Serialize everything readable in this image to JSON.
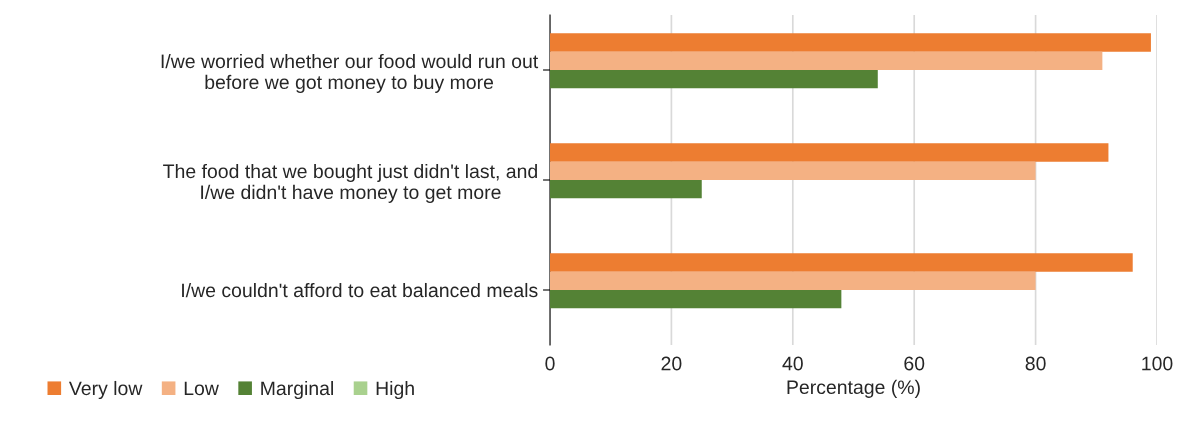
{
  "chart_data": {
    "type": "bar",
    "orientation": "horizontal",
    "xlabel": "Percentage (%)",
    "categories": [
      "I/we worried whether our food would run out\nbefore we got money to buy more",
      "The food that we bought just didn't last, and\nI/we didn't have money to get more",
      "I/we couldn't afford to eat balanced meals"
    ],
    "series": [
      {
        "name": "Very low",
        "color": "#ed7d31",
        "values": [
          99,
          92,
          96
        ]
      },
      {
        "name": "Low",
        "color": "#f4b183",
        "values": [
          91,
          80,
          80
        ]
      },
      {
        "name": "Marginal",
        "color": "#548235",
        "values": [
          54,
          25,
          48
        ]
      },
      {
        "name": "High",
        "color": "#a9d18e",
        "values": [
          0,
          0,
          0
        ]
      }
    ],
    "xlim": [
      0,
      100
    ],
    "xticks": [
      0,
      20,
      40,
      60,
      80,
      100
    ],
    "grid": "x",
    "legend": "bottom left"
  }
}
